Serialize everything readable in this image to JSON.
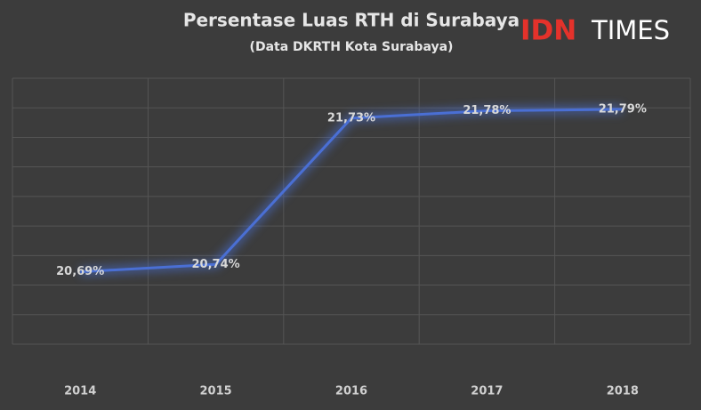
{
  "chart_data": {
    "type": "line",
    "title": "Persentase Luas RTH di Surabaya",
    "subtitle": "(Data DKRTH Kota Surabaya)",
    "logo": {
      "brand": "IDN",
      "name": "TIMES"
    },
    "categories": [
      "2014",
      "2015",
      "2016",
      "2017",
      "2018"
    ],
    "series": [
      {
        "color": "#4a6fd4",
        "values": [
          20.69,
          20.74,
          21.73,
          21.78,
          21.79
        ],
        "value_labels": [
          "20,69%",
          "20,74%",
          "21,73%",
          "21,78%",
          "21,79%"
        ]
      }
    ],
    "ylim": [
      20.2,
      22.0
    ],
    "yticks": [
      20.2,
      20.4,
      20.6,
      20.8,
      21.0,
      21.2,
      21.4,
      21.6,
      21.8,
      22.0
    ],
    "grid": true
  }
}
